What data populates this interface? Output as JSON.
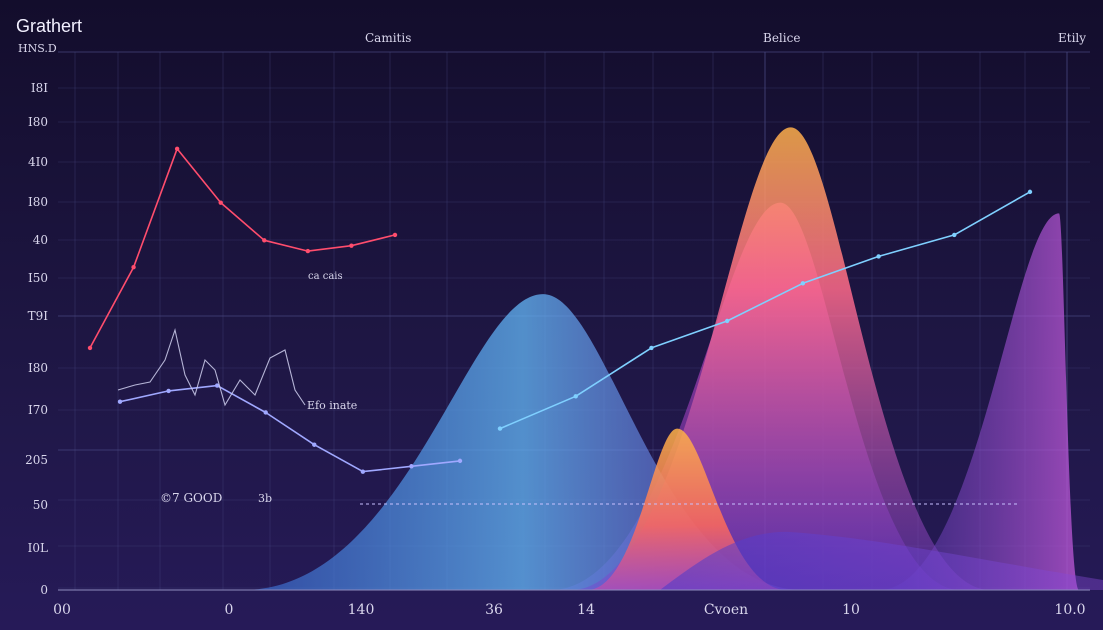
{
  "title": "Grathert",
  "subtitle": "HNS.D",
  "top_labels": [
    "Camitis",
    "Belice",
    "Etily"
  ],
  "annotations": [
    "ca cais",
    "Efo inate",
    "©7 GOOD",
    "3b"
  ],
  "colors": {
    "background": "#1a1236",
    "grid": "#4a4a84",
    "red_line": "#ff4d6d",
    "blue_line": "#7fd0ff"
  },
  "chart_data": {
    "type": "area",
    "title": "Grathert",
    "subtitle": "HNS.D",
    "y_tick_labels": [
      "I8I",
      "I80",
      "4I0",
      "I80",
      "40",
      "I50",
      "T9I",
      "I80",
      "I70",
      "205",
      "50",
      "I0L",
      "0"
    ],
    "x_tick_labels": [
      "00",
      "0",
      "140",
      "36",
      "14",
      "Cvoen",
      "10",
      "10.0"
    ],
    "grid": true,
    "series": [
      {
        "kind": "area",
        "color": "#e04fc0",
        "peak_x": 0.7,
        "peak_y": 0.72
      },
      {
        "kind": "area",
        "color": "#5aa8f0",
        "peak_x": 0.47,
        "peak_y": 0.55
      },
      {
        "kind": "area",
        "color": "#ff9a4a",
        "peak_x": 0.71,
        "peak_y": 0.86
      },
      {
        "kind": "area",
        "color": "#ff8c3a",
        "peak_x": 0.6,
        "peak_y": 0.3
      },
      {
        "kind": "area",
        "color": "#b05ae0",
        "peak_x": 0.97,
        "peak_y": 0.7
      },
      {
        "kind": "line",
        "color": "#ff4d6d",
        "values": [
          0.45,
          0.6,
          0.82,
          0.72,
          0.65,
          0.63,
          0.64,
          0.66
        ]
      },
      {
        "kind": "line",
        "color": "#a0a8ff",
        "values": [
          0.35,
          0.37,
          0.38,
          0.33,
          0.27,
          0.22,
          0.23,
          0.24
        ]
      },
      {
        "kind": "line",
        "color": "#7fd0ff",
        "values": [
          0.3,
          0.36,
          0.45,
          0.5,
          0.57,
          0.62,
          0.66,
          0.74
        ]
      }
    ]
  }
}
